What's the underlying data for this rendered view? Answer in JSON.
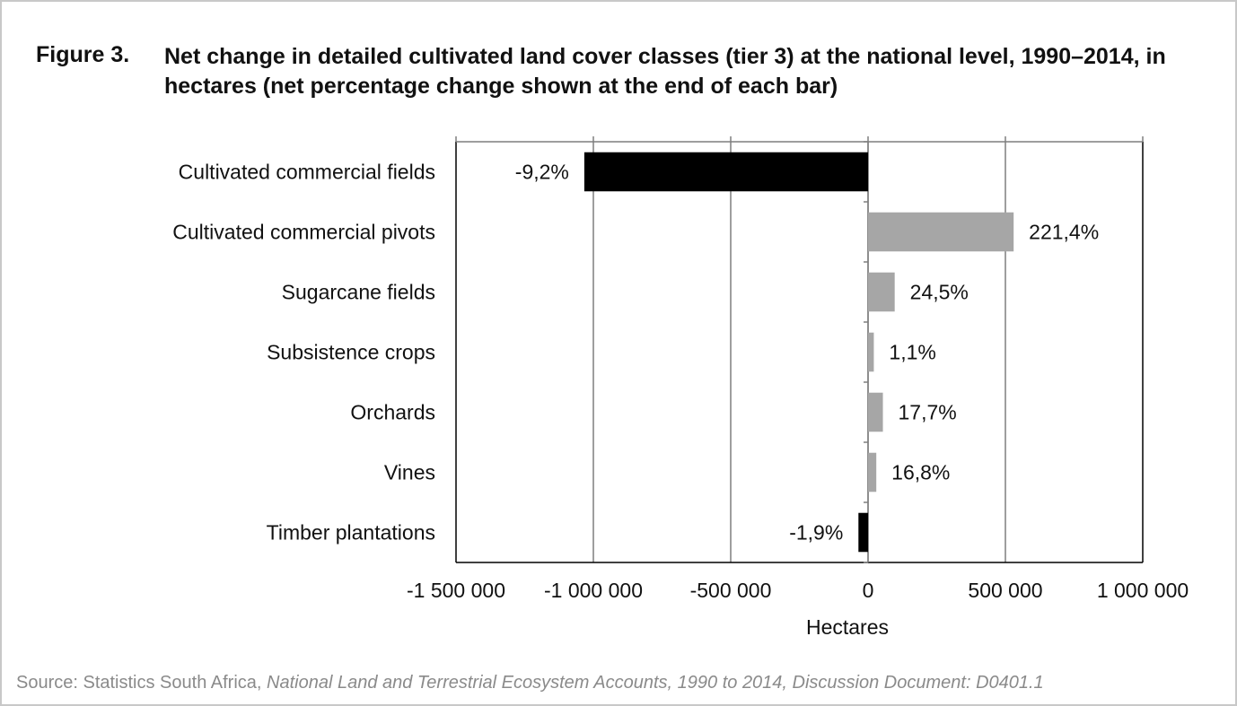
{
  "figure": {
    "label": "Figure 3.",
    "title": "Net change in detailed cultivated land cover classes (tier 3) at the national level, 1990–2014, in hectares (net percentage change shown at the end of each bar)"
  },
  "source": {
    "prefix": "Source: Statistics South Africa, ",
    "title": "National Land and Terrestrial Ecosystem Accounts, 1990 to 2014, Discussion Document: D0401.1"
  },
  "colors": {
    "negative": "#000000",
    "positive": "#a6a6a6",
    "grid": "#7f7f7f",
    "axis": "#000000"
  },
  "chart_data": {
    "type": "bar",
    "orientation": "horizontal",
    "categories": [
      "Cultivated commercial fields",
      "Cultivated commercial pivots",
      "Sugarcane fields",
      "Subsistence crops",
      "Orchards",
      "Vines",
      "Timber plantations"
    ],
    "values": [
      -1033000,
      530000,
      97000,
      21000,
      54000,
      30000,
      -35000
    ],
    "labels": [
      "-9,2%",
      "221,4%",
      "24,5%",
      "1,1%",
      "17,7%",
      "16,8%",
      "-1,9%"
    ],
    "xlim": [
      -1500000,
      1000000
    ],
    "xticks": [
      -1500000,
      -1000000,
      -500000,
      0,
      500000,
      1000000
    ],
    "xtick_labels": [
      "-1 500 000",
      "-1 000 000",
      "-500 000",
      "0",
      "500 000",
      "1 000 000"
    ],
    "xlabel": "Hectares",
    "ylabel": "",
    "grid": true,
    "legend": false
  }
}
